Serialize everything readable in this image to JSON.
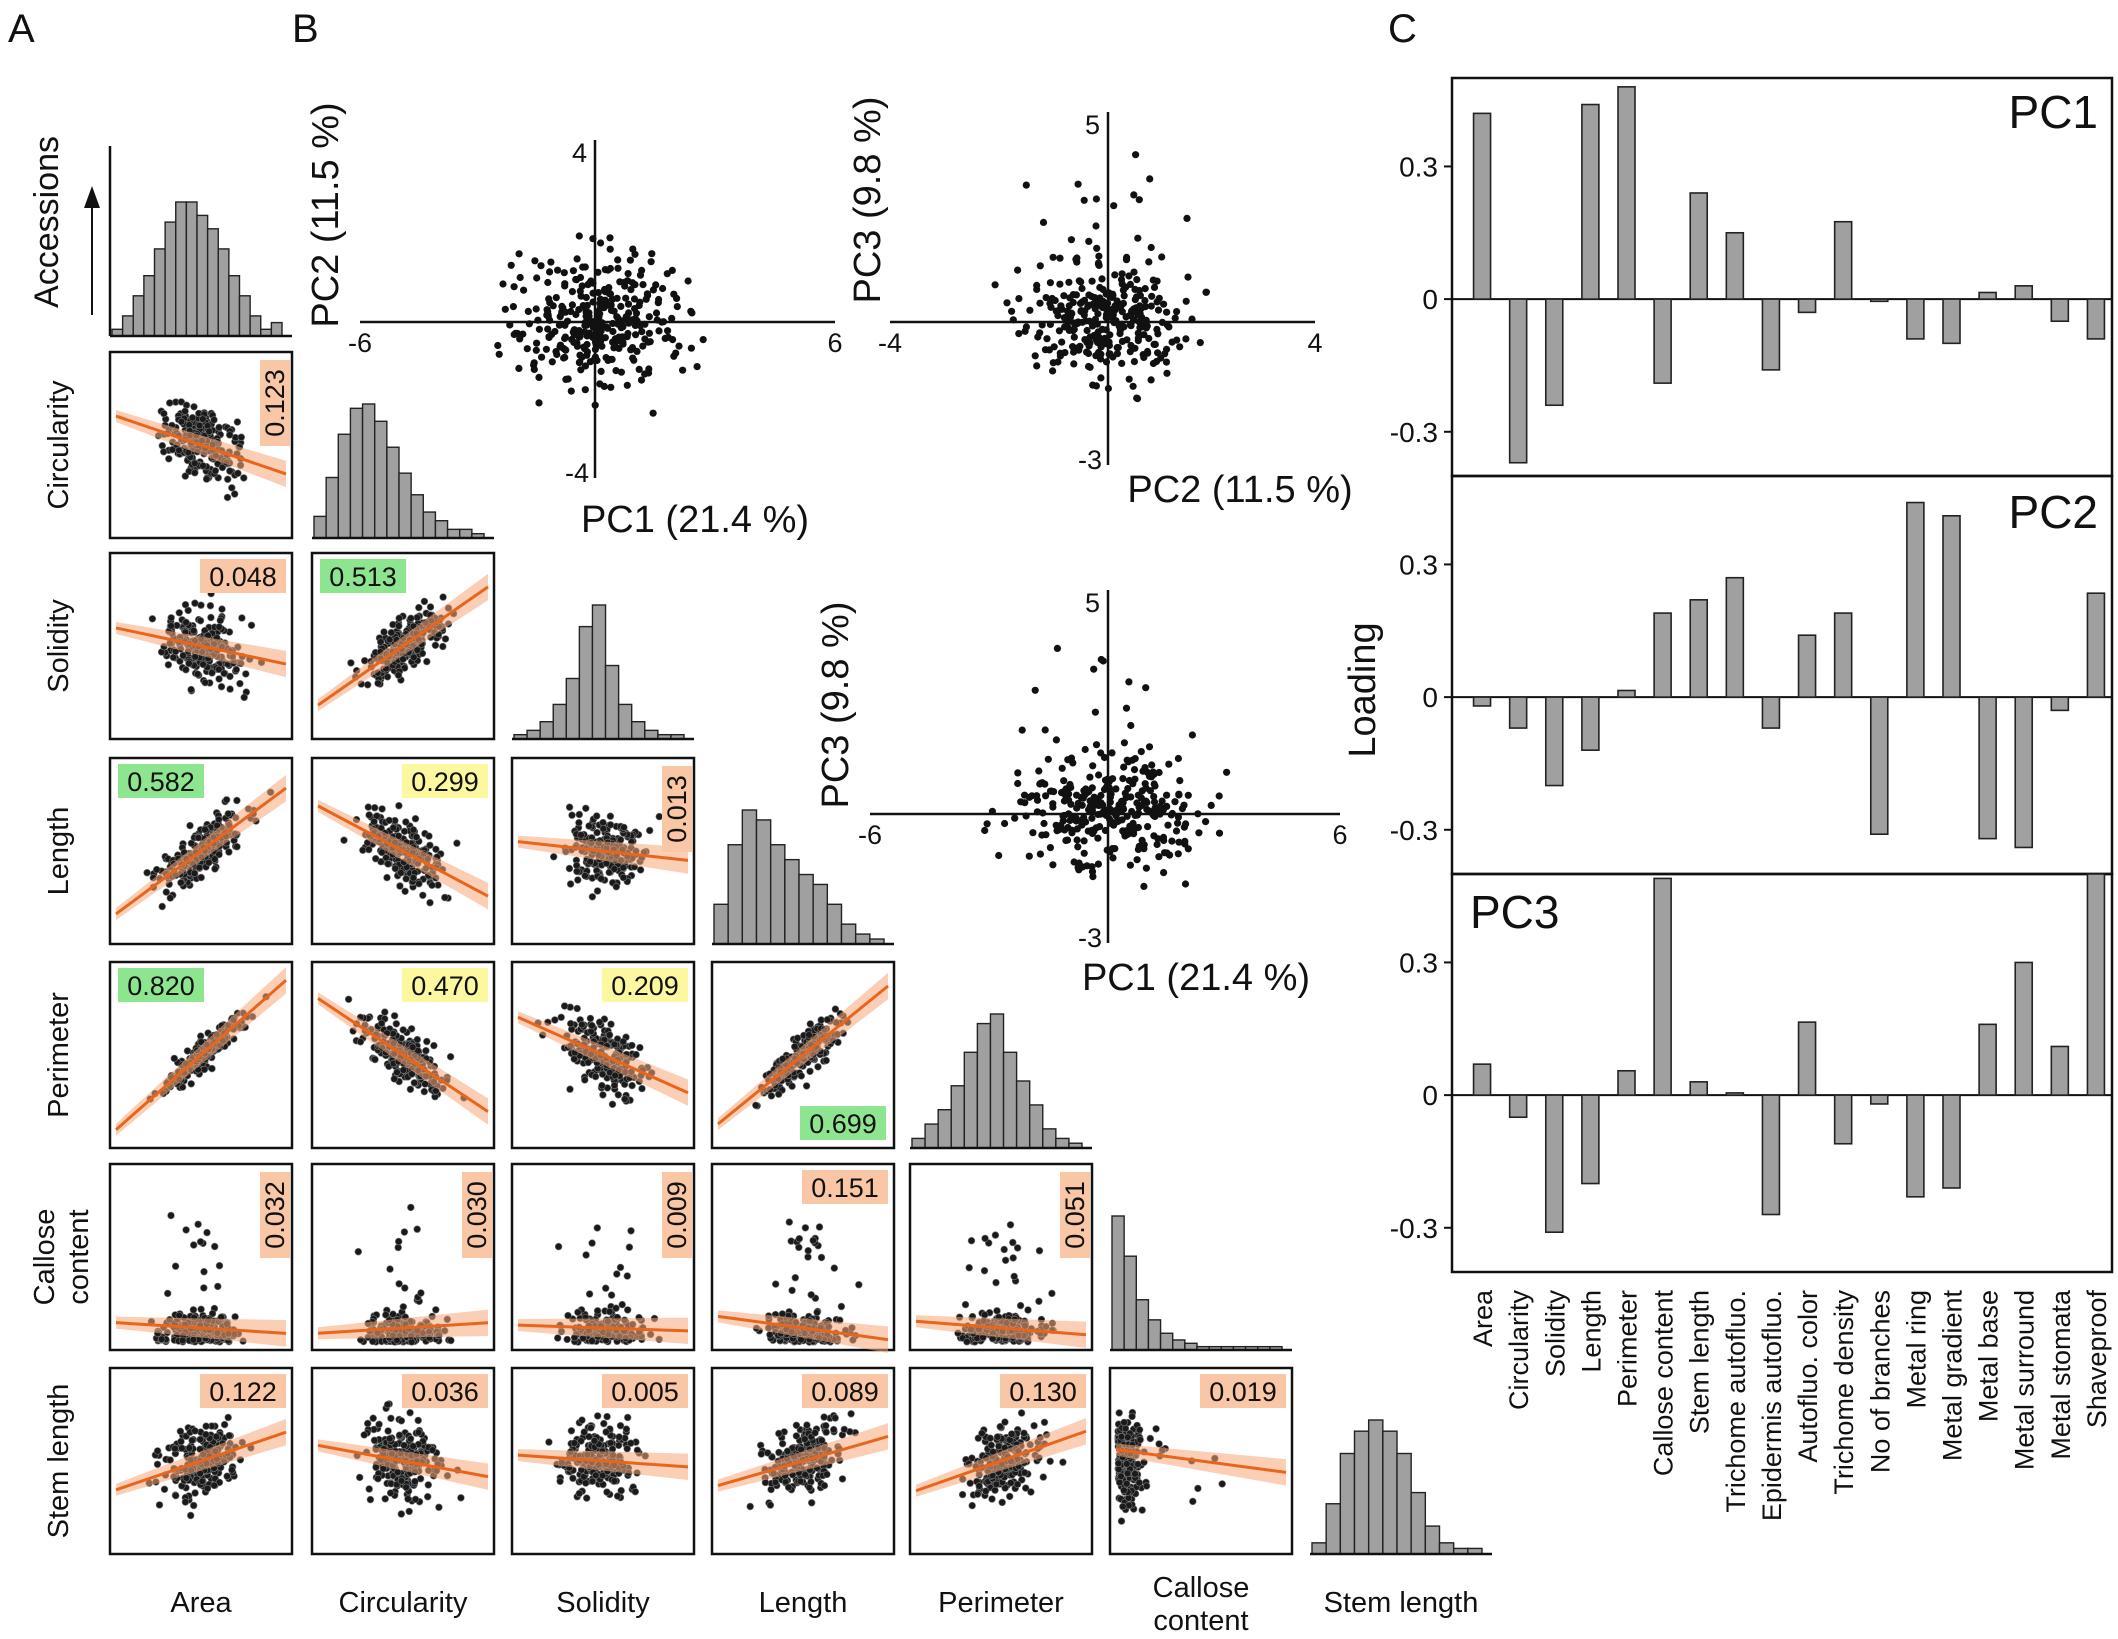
{
  "panels": {
    "a": "A",
    "b": "B",
    "c": "C"
  },
  "matrix": {
    "accessions_label": "Accessions",
    "variables": [
      "Area",
      "Circularity",
      "Solidity",
      "Length",
      "Perimeter",
      "Callose content",
      "Stem length"
    ],
    "row_labels": [
      "",
      "Circularity",
      "Solidity",
      "Length",
      "Perimeter",
      "Callose content",
      "Stem length"
    ],
    "col_labels": [
      "Area",
      "Circularity",
      "Solidity",
      "Length",
      "Perimeter",
      "Callose content",
      "Stem length"
    ],
    "badge_colors": {
      "green": "#8ee58f",
      "yellow": "#fbf8a0",
      "orange": "#f9c7a5"
    },
    "fit_color": "#e8661c",
    "band_color": "#f7a57a",
    "bar_color": "#a0a0a0",
    "pairs": [
      {
        "row": 1,
        "col": 0,
        "r2": "0.123",
        "color": "orange",
        "direction": "neg",
        "rotated": true
      },
      {
        "row": 2,
        "col": 0,
        "r2": "0.048",
        "color": "orange",
        "direction": "neg",
        "rotated": false
      },
      {
        "row": 2,
        "col": 1,
        "r2": "0.513",
        "color": "green",
        "direction": "pos",
        "rotated": false
      },
      {
        "row": 3,
        "col": 0,
        "r2": "0.582",
        "color": "green",
        "direction": "pos",
        "rotated": false
      },
      {
        "row": 3,
        "col": 1,
        "r2": "0.299",
        "color": "yellow",
        "direction": "neg",
        "rotated": false
      },
      {
        "row": 3,
        "col": 2,
        "r2": "0.013",
        "color": "orange",
        "direction": "neg",
        "rotated": true
      },
      {
        "row": 4,
        "col": 0,
        "r2": "0.820",
        "color": "green",
        "direction": "pos",
        "rotated": false
      },
      {
        "row": 4,
        "col": 1,
        "r2": "0.470",
        "color": "yellow",
        "direction": "neg",
        "rotated": false
      },
      {
        "row": 4,
        "col": 2,
        "r2": "0.209",
        "color": "yellow",
        "direction": "neg",
        "rotated": false
      },
      {
        "row": 4,
        "col": 3,
        "r2": "0.699",
        "color": "green",
        "direction": "pos",
        "rotated": false
      },
      {
        "row": 5,
        "col": 0,
        "r2": "0.032",
        "color": "orange",
        "direction": "neg",
        "rotated": true
      },
      {
        "row": 5,
        "col": 1,
        "r2": "0.030",
        "color": "orange",
        "direction": "pos",
        "rotated": true
      },
      {
        "row": 5,
        "col": 2,
        "r2": "0.009",
        "color": "orange",
        "direction": "neg",
        "rotated": true
      },
      {
        "row": 5,
        "col": 3,
        "r2": "0.151",
        "color": "orange",
        "direction": "neg",
        "rotated": false
      },
      {
        "row": 5,
        "col": 4,
        "r2": "0.051",
        "color": "orange",
        "direction": "neg",
        "rotated": true
      },
      {
        "row": 6,
        "col": 0,
        "r2": "0.122",
        "color": "orange",
        "direction": "pos",
        "rotated": false
      },
      {
        "row": 6,
        "col": 1,
        "r2": "0.036",
        "color": "orange",
        "direction": "neg",
        "rotated": false
      },
      {
        "row": 6,
        "col": 2,
        "r2": "0.005",
        "color": "orange",
        "direction": "neg",
        "rotated": false
      },
      {
        "row": 6,
        "col": 3,
        "r2": "0.089",
        "color": "orange",
        "direction": "pos",
        "rotated": false
      },
      {
        "row": 6,
        "col": 4,
        "r2": "0.130",
        "color": "orange",
        "direction": "pos",
        "rotated": false
      },
      {
        "row": 6,
        "col": 5,
        "r2": "0.019",
        "color": "orange",
        "direction": "neg",
        "rotated": false
      }
    ],
    "histograms": [
      [
        1,
        3,
        6,
        9,
        13,
        17,
        20,
        20,
        18,
        16,
        13,
        9,
        6,
        3,
        1,
        2
      ],
      [
        5,
        14,
        24,
        30,
        31,
        27,
        21,
        15,
        10,
        6,
        4,
        2,
        2,
        1
      ],
      [
        1,
        2,
        4,
        8,
        14,
        26,
        31,
        17,
        8,
        4,
        2,
        1,
        1
      ],
      [
        8,
        20,
        27,
        25,
        20,
        17,
        14,
        12,
        8,
        4,
        2,
        1
      ],
      [
        2,
        5,
        8,
        13,
        20,
        26,
        28,
        20,
        14,
        9,
        4,
        2,
        1
      ],
      [
        40,
        28,
        15,
        9,
        5,
        3,
        2,
        1,
        1,
        1,
        1,
        1,
        1,
        1
      ],
      [
        2,
        9,
        18,
        22,
        24,
        22,
        18,
        11,
        5,
        2,
        1,
        1
      ]
    ]
  },
  "scatters": [
    {
      "xlabel": "PC1 (21.4 %)",
      "ylabel": "PC2 (11.5 %)",
      "xmin": "-6",
      "xmax": "6",
      "ymax": "4",
      "ymin": "-4",
      "xlim": [
        -6,
        6
      ],
      "ylim": [
        -4,
        4
      ]
    },
    {
      "xlabel": "PC2 (11.5 %)",
      "ylabel": "PC3 (9.8 %)",
      "xmin": "-4",
      "xmax": "4",
      "ymax": "5",
      "ymin": "-3",
      "xlim": [
        -4,
        4
      ],
      "ylim": [
        -3,
        5
      ]
    },
    {
      "xlabel": "PC1 (21.4 %)",
      "ylabel": "PC3 (9.8 %)",
      "xmin": "-6",
      "xmax": "6",
      "ymax": "5",
      "ymin": "-3",
      "xlim": [
        -6,
        6
      ],
      "ylim": [
        -3,
        5
      ]
    }
  ],
  "chart_data": {
    "type": "bar",
    "ylabel": "Loading",
    "ylim": [
      -0.4,
      0.5
    ],
    "yticks": [
      "0.3",
      "0",
      "-0.3"
    ],
    "categories": [
      "Area",
      "Circularity",
      "Solidity",
      "Length",
      "Perimeter",
      "Callose content",
      "Stem length",
      "Trichome autofluo.",
      "Epidermis autofluo.",
      "Autofluo. color",
      "Trichome density",
      "No of branches",
      "Metal ring",
      "Metal gradient",
      "Metal base",
      "Metal surround",
      "Metal stomata",
      "Shaveproof"
    ],
    "series": [
      {
        "name": "PC1",
        "values": [
          0.42,
          -0.37,
          -0.24,
          0.44,
          0.48,
          -0.19,
          0.24,
          0.15,
          -0.16,
          -0.03,
          0.175,
          -0.005,
          -0.09,
          -0.1,
          0.015,
          0.03,
          -0.05,
          -0.09
        ]
      },
      {
        "name": "PC2",
        "values": [
          -0.02,
          -0.07,
          -0.2,
          -0.12,
          0.015,
          0.19,
          0.22,
          0.27,
          -0.07,
          0.14,
          0.19,
          -0.31,
          0.44,
          0.41,
          -0.32,
          -0.34,
          -0.03,
          0.235
        ]
      },
      {
        "name": "PC3",
        "values": [
          0.07,
          -0.05,
          -0.31,
          -0.2,
          0.055,
          0.49,
          0.03,
          0.005,
          -0.27,
          0.165,
          -0.11,
          -0.02,
          -0.23,
          -0.21,
          0.16,
          0.3,
          0.11,
          0.5
        ]
      }
    ]
  }
}
